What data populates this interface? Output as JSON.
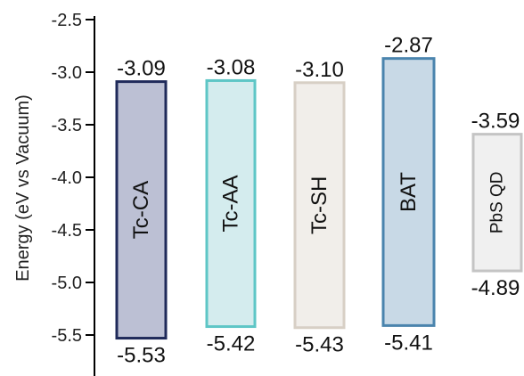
{
  "chart_data": {
    "type": "bar",
    "ylabel": "Energy (eV vs Vacuum)",
    "ylim": [
      -5.6,
      -2.45
    ],
    "yticks": [
      -2.5,
      -3.0,
      -3.5,
      -4.0,
      -4.5,
      -5.0,
      -5.5
    ],
    "ytick_labels": [
      "-2.5",
      "-3.0",
      "-3.5",
      "-4.0",
      "-4.5",
      "-5.0",
      "-5.5"
    ],
    "minor_tick_step": 0.1,
    "categories": [
      "Tc-CA",
      "Tc-AA",
      "Tc-SH",
      "BAT",
      "PbS QD"
    ],
    "bars": [
      {
        "name": "Tc-CA",
        "top": -3.09,
        "bottom": -5.53,
        "top_label": "-3.09",
        "bottom_label": "-5.53",
        "fill": "#bcc0d4",
        "stroke": "#1f2a5a"
      },
      {
        "name": "Tc-AA",
        "top": -3.08,
        "bottom": -5.42,
        "top_label": "-3.08",
        "bottom_label": "-5.42",
        "fill": "#d4ecee",
        "stroke": "#5ec6c6"
      },
      {
        "name": "Tc-SH",
        "top": -3.1,
        "bottom": -5.43,
        "top_label": "-3.10",
        "bottom_label": "-5.43",
        "fill": "#f1eeea",
        "stroke": "#d7cfc5"
      },
      {
        "name": "BAT",
        "top": -2.87,
        "bottom": -5.41,
        "top_label": "-2.87",
        "bottom_label": "-5.41",
        "fill": "#c8d9e6",
        "stroke": "#4a84ad"
      },
      {
        "name": "PbS QD",
        "top": -3.59,
        "bottom": -4.89,
        "top_label": "-3.59",
        "bottom_label": "-4.89",
        "fill": "#f0f0f0",
        "stroke": "#c4c4c4"
      }
    ]
  }
}
